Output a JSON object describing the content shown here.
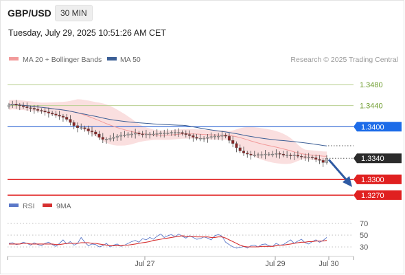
{
  "header": {
    "pair": "GBP/USD",
    "timeframe": "30 MIN",
    "datetime": "Tuesday, July 29, 2025 10:51:26 AM CET"
  },
  "legend": {
    "ma20": "MA 20 + Bollinger Bands",
    "ma50": "MA 50",
    "copyright": "Research © 2025 Trading Central",
    "rsi": "RSI",
    "ma9": "9MA"
  },
  "colors": {
    "ma20": "#f29a9a",
    "band_fill": "#f8d4d4",
    "ma50": "#3b5e95",
    "green_level": "#b7cf8f",
    "green_text": "#6b9b2a",
    "pivot_line": "#3d6fd6",
    "pivot_tag": "#1d6ce8",
    "price_tag": "#2b2b2b",
    "support": "#e02020",
    "candle_up": "#b3b3b3",
    "candle_down": "#8a2424",
    "rsi": "#5b78c8",
    "rsi_ma": "#d63030",
    "arrow": "#2e5aa3"
  },
  "chart_data": [
    {
      "type": "candlestick",
      "symbol": "GBP/USD",
      "timeframe": "30 MIN",
      "ylim": [
        1.3262,
        1.351
      ],
      "x_ticks": [
        "Jul 27",
        "Jul 29",
        "Jul 30"
      ],
      "close": [
        1.3441,
        1.3443,
        1.3441,
        1.344,
        1.3438,
        1.3436,
        1.3435,
        1.3433,
        1.3431,
        1.343,
        1.3428,
        1.3426,
        1.3424,
        1.3422,
        1.342,
        1.3418,
        1.3414,
        1.3408,
        1.3402,
        1.3398,
        1.3398,
        1.3396,
        1.3392,
        1.339,
        1.3386,
        1.338,
        1.3376,
        1.3376,
        1.3378,
        1.338,
        1.3382,
        1.3384,
        1.3384,
        1.3386,
        1.3386,
        1.3388,
        1.3386,
        1.3385,
        1.3386,
        1.3386,
        1.3386,
        1.3387,
        1.3388,
        1.3388,
        1.3388,
        1.3389,
        1.3389,
        1.3389,
        1.3387,
        1.3385,
        1.3383,
        1.338,
        1.3378,
        1.3378,
        1.3378,
        1.338,
        1.3381,
        1.3382,
        1.3382,
        1.3384,
        1.3382,
        1.3374,
        1.3368,
        1.336,
        1.3354,
        1.335,
        1.3348,
        1.3346,
        1.3346,
        1.3347,
        1.3347,
        1.3348,
        1.3348,
        1.3348,
        1.3349,
        1.3348,
        1.3346,
        1.3346,
        1.3345,
        1.3346,
        1.3344,
        1.3343,
        1.3342,
        1.3342,
        1.3341,
        1.3338,
        1.3336,
        1.3332,
        1.334
      ],
      "levels": [
        {
          "value": 1.348,
          "label": "1.3480",
          "style": "resistance"
        },
        {
          "value": 1.344,
          "label": "1.3440",
          "style": "resistance"
        },
        {
          "value": 1.34,
          "label": "1.3400",
          "style": "pivot"
        },
        {
          "value": 1.334,
          "label": "1.3340",
          "style": "last-price"
        },
        {
          "value": 1.33,
          "label": "1.3300",
          "style": "support"
        },
        {
          "value": 1.327,
          "label": "1.3270",
          "style": "support"
        }
      ],
      "ma20_label": "MA 20 + Bollinger Bands",
      "ma50_label": "MA 50"
    },
    {
      "type": "line",
      "title": "RSI",
      "ylim": [
        15,
        85
      ],
      "y_ticks": [
        30,
        50,
        70
      ],
      "series": [
        {
          "name": "RSI",
          "values": [
            36,
            37,
            34,
            35,
            38,
            36,
            33,
            37,
            34,
            32,
            36,
            38,
            34,
            31,
            36,
            42,
            35,
            39,
            33,
            36,
            46,
            38,
            32,
            35,
            34,
            30,
            32,
            36,
            30,
            33,
            35,
            31,
            33,
            36,
            39,
            41,
            38,
            44,
            42,
            46,
            43,
            48,
            52,
            46,
            49,
            51,
            47,
            52,
            48,
            45,
            49,
            46,
            43,
            44,
            47,
            45,
            42,
            49,
            51,
            48,
            38,
            34,
            30,
            28,
            29,
            31,
            28,
            32,
            33,
            30,
            34,
            35,
            32,
            31,
            36,
            33,
            34,
            38,
            42,
            36,
            40,
            43,
            37,
            35,
            39,
            42,
            38,
            41,
            46
          ]
        },
        {
          "name": "9MA",
          "values": [
            35,
            35,
            35,
            35,
            36,
            36,
            35,
            35,
            35,
            35,
            35,
            35,
            35,
            34,
            34,
            35,
            36,
            36,
            36,
            36,
            37,
            37,
            37,
            36,
            36,
            35,
            34,
            33,
            32,
            32,
            32,
            32,
            33,
            33,
            34,
            35,
            36,
            37,
            38,
            39,
            41,
            42,
            43,
            44,
            45,
            46,
            47,
            48,
            49,
            48,
            48,
            48,
            47,
            47,
            47,
            47,
            46,
            46,
            47,
            47,
            45,
            42,
            39,
            36,
            33,
            31,
            30,
            30,
            30,
            30,
            31,
            31,
            31,
            31,
            32,
            33,
            33,
            34,
            35,
            36,
            37,
            38,
            38,
            39,
            39,
            40,
            40,
            40,
            41
          ]
        }
      ]
    }
  ]
}
